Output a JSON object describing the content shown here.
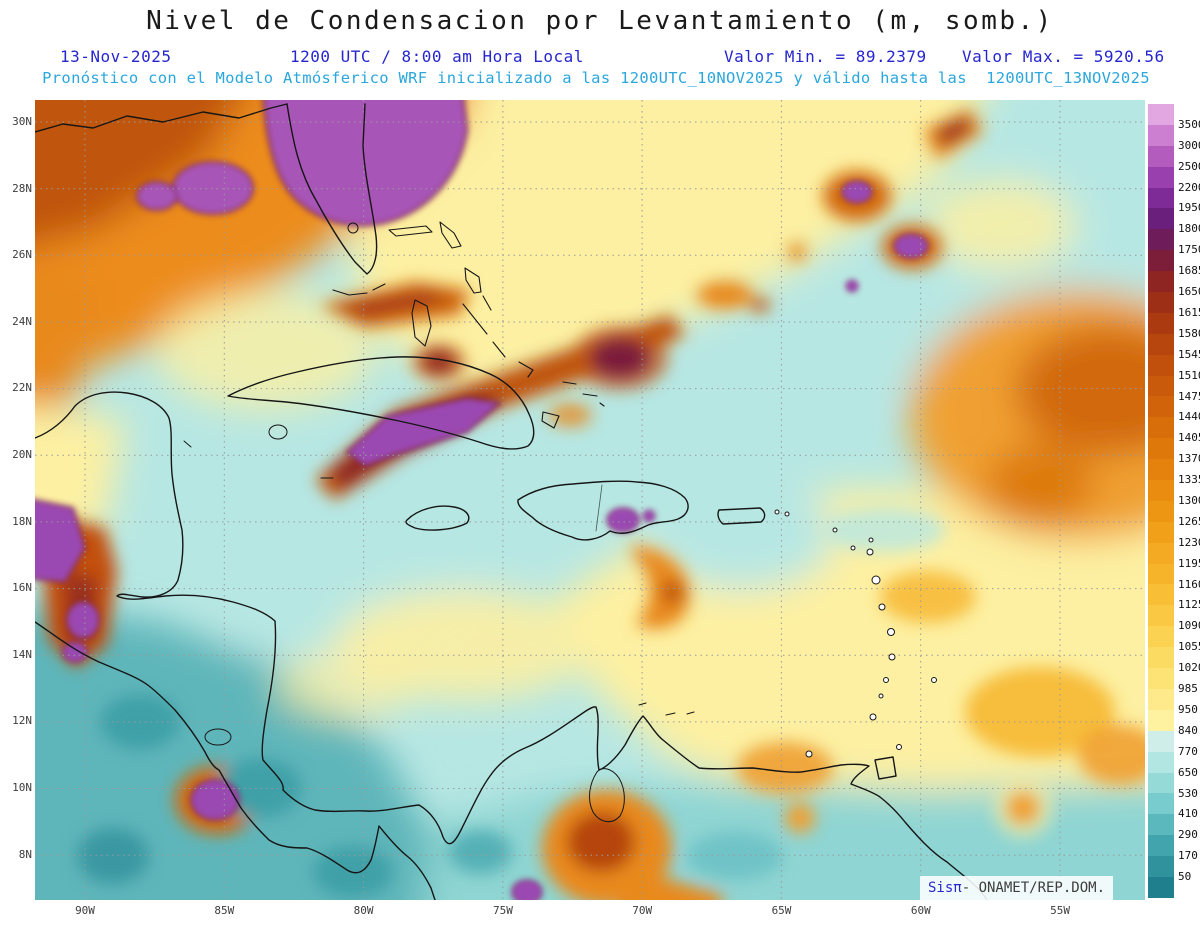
{
  "title": "Nivel de Condensacion por Levantamiento (m, somb.)",
  "header": {
    "date": "13-Nov-2025",
    "time": "1200 UTC / 8:00 am Hora Local",
    "min_label": "Valor Min. = 89.2379",
    "max_label": "Valor Max. = 5920.56",
    "forecast_line": "Pronóstico con el Modelo Atmósferico WRF inicializado a las 1200UTC_10NOV2025 y válido hasta las  1200UTC_13NOV2025"
  },
  "watermark": {
    "brand": "Sisπ",
    "text": "- ONAMET/REP.DOM."
  },
  "chart_data": {
    "type": "heatmap",
    "title": "Nivel de Condensacion por Levantamiento (m, somb.)",
    "units": "m",
    "model": "WRF",
    "initialized": "1200UTC_10NOV2025",
    "valid_until": "1200UTC_13NOV2025",
    "valid_date": "13-Nov-2025",
    "valid_time_utc": "1200 UTC",
    "valid_time_local": "8:00 am Hora Local",
    "value_min": 89.2379,
    "value_max": 5920.56,
    "y_axis_ticks": [
      "30N",
      "28N",
      "26N",
      "24N",
      "22N",
      "20N",
      "18N",
      "16N",
      "14N",
      "12N",
      "10N",
      "8N"
    ],
    "x_axis_ticks": [
      "90W",
      "85W",
      "80W",
      "75W",
      "70W",
      "65W",
      "60W",
      "55W"
    ],
    "colorbar_levels": [
      3500,
      3000,
      2500,
      2200,
      1950,
      1800,
      1750,
      1685,
      1650,
      1615,
      1580,
      1545,
      1510,
      1475,
      1440,
      1405,
      1370,
      1335,
      1300,
      1265,
      1230,
      1195,
      1160,
      1125,
      1090,
      1055,
      1020,
      985,
      950,
      840,
      770,
      650,
      530,
      410,
      290,
      170,
      50
    ],
    "colorbar_colors": [
      "#e2a7e0",
      "#cc7fd1",
      "#b45cbe",
      "#9a3fae",
      "#7f2b97",
      "#6a1f7d",
      "#6e1c5a",
      "#7c1e3a",
      "#8f2522",
      "#9e2f17",
      "#ab3a11",
      "#b6450e",
      "#c0500c",
      "#c95a0b",
      "#d1640a",
      "#d86e0a",
      "#de780b",
      "#e4820d",
      "#e98c10",
      "#ed9614",
      "#f1a01a",
      "#f4aa22",
      "#f6b42b",
      "#f8be36",
      "#fac843",
      "#fbd252",
      "#fcdb63",
      "#fde376",
      "#feea8a",
      "#fef19f",
      "#cfeee9",
      "#b2e6e2",
      "#96dad8",
      "#78cccd",
      "#5bb9bd",
      "#42a4ac",
      "#2f929c",
      "#1f7f8c"
    ],
    "grid": "dotted",
    "legend_position": "right"
  }
}
